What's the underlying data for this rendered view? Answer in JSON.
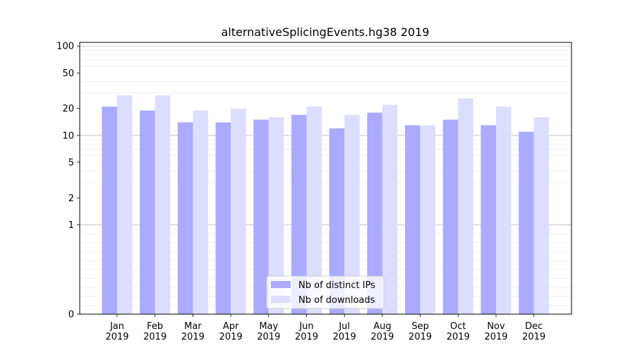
{
  "chart_data": {
    "type": "bar",
    "title": "alternativeSplicingEvents.hg38 2019",
    "xlabel": "",
    "ylabel": "",
    "yscale": "symlog",
    "ylim": [
      0,
      110
    ],
    "yticks": [
      0,
      1,
      2,
      5,
      10,
      20,
      50,
      100
    ],
    "grid": true,
    "legend_position": "bottom-center",
    "categories": [
      [
        "Jan",
        "2019"
      ],
      [
        "Feb",
        "2019"
      ],
      [
        "Mar",
        "2019"
      ],
      [
        "Apr",
        "2019"
      ],
      [
        "May",
        "2019"
      ],
      [
        "Jun",
        "2019"
      ],
      [
        "Jul",
        "2019"
      ],
      [
        "Aug",
        "2019"
      ],
      [
        "Sep",
        "2019"
      ],
      [
        "Oct",
        "2019"
      ],
      [
        "Nov",
        "2019"
      ],
      [
        "Dec",
        "2019"
      ]
    ],
    "series": [
      {
        "name": "Nb of distinct IPs",
        "color": "#aaaaff",
        "values": [
          21,
          19,
          14,
          14,
          15,
          17,
          12,
          18,
          13,
          15,
          13,
          11
        ]
      },
      {
        "name": "Nb of downloads",
        "color": "#ddddff",
        "values": [
          28,
          28,
          19,
          20,
          16,
          21,
          17,
          22,
          13,
          26,
          21,
          16
        ]
      }
    ]
  }
}
